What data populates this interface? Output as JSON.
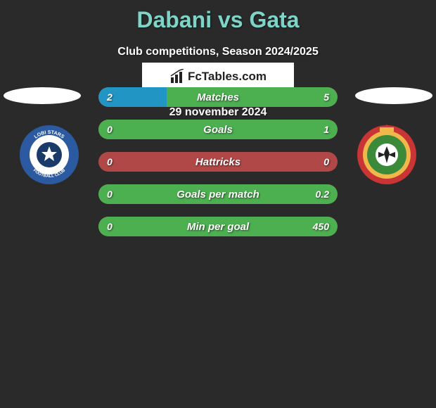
{
  "title": "Dabani vs Gata",
  "subtitle": "Club competitions, Season 2024/2025",
  "date": "29 november 2024",
  "brand": "FcTables.com",
  "colors": {
    "title": "#7fd4c8",
    "text": "#ffffff",
    "bar_bg": "#b04848",
    "bar_left_fill": "#2196c4",
    "bar_right_fill": "#4caf50",
    "background": "#2a2a2a",
    "ellipse": "#ffffff",
    "brand_box_bg": "#ffffff",
    "brand_text": "#222222"
  },
  "badge_left": {
    "outer": "#2b5aa0",
    "inner": "#ffffff",
    "ball": "#1a3a6a",
    "text_top": "LOBI STARS",
    "text_bottom": "FOOTBALL CLUB"
  },
  "badge_right": {
    "outer": "#c93434",
    "ring": "#f0b84a",
    "grass": "#3a8a3a",
    "ball": "#ffffff"
  },
  "bars": [
    {
      "label": "Matches",
      "left": "2",
      "right": "5",
      "left_pct": 28.6,
      "right_pct": 71.4
    },
    {
      "label": "Goals",
      "left": "0",
      "right": "1",
      "left_pct": 0,
      "right_pct": 100
    },
    {
      "label": "Hattricks",
      "left": "0",
      "right": "0",
      "left_pct": 0,
      "right_pct": 0
    },
    {
      "label": "Goals per match",
      "left": "0",
      "right": "0.2",
      "left_pct": 0,
      "right_pct": 100
    },
    {
      "label": "Min per goal",
      "left": "0",
      "right": "450",
      "left_pct": 0,
      "right_pct": 100
    }
  ],
  "typography": {
    "title_fontsize": 32,
    "subtitle_fontsize": 16,
    "bar_label_fontsize": 15,
    "bar_value_fontsize": 14,
    "date_fontsize": 16,
    "brand_fontsize": 17
  }
}
